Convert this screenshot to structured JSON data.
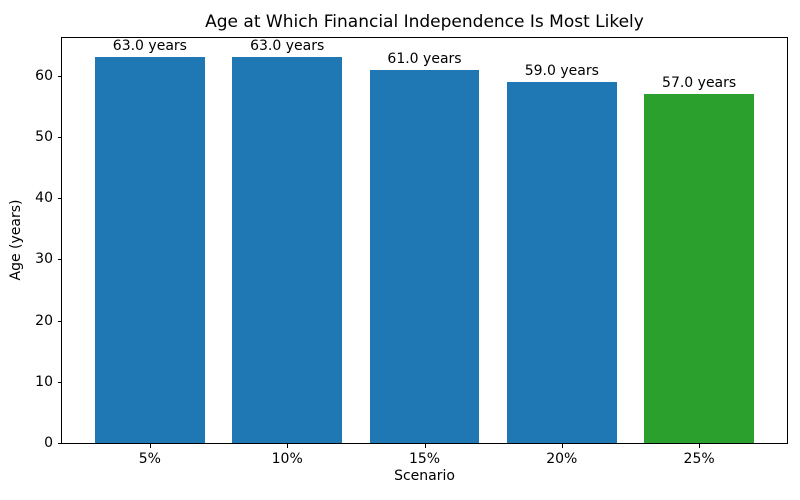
{
  "chart_data": {
    "type": "bar",
    "title": "Age at Which Financial Independence Is Most Likely",
    "xlabel": "Scenario",
    "ylabel": "Age (years)",
    "categories": [
      "5%",
      "10%",
      "15%",
      "20%",
      "25%"
    ],
    "values": [
      63.0,
      63.0,
      61.0,
      59.0,
      57.0
    ],
    "bar_labels": [
      "63.0 years",
      "63.0 years",
      "61.0 years",
      "59.0 years",
      "57.0 years"
    ],
    "bar_colors": [
      "#1f77b4",
      "#1f77b4",
      "#1f77b4",
      "#1f77b4",
      "#2ca02c"
    ],
    "yticks": [
      0,
      10,
      20,
      30,
      40,
      50,
      60
    ],
    "ylim": [
      0,
      66.15
    ],
    "grid": false,
    "legend": null,
    "spine_color": "#000000",
    "background_color": "#ffffff"
  }
}
